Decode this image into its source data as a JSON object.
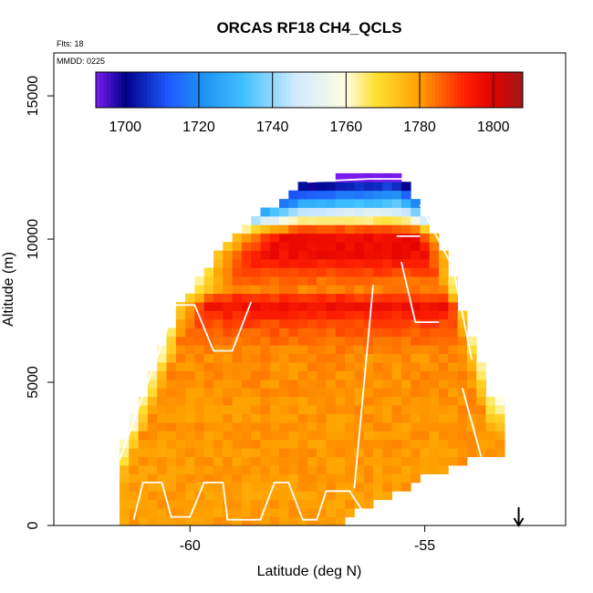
{
  "chart_data": {
    "type": "heatmap",
    "title": "ORCAS RF18 CH4_QCLS",
    "annotations": [
      "Flts: 18",
      "MMDD: 0225"
    ],
    "xlabel": "Latitude (deg N)",
    "ylabel": "Altitude (m)",
    "xlim": [
      -62.9,
      -52.0
    ],
    "ylim": [
      0,
      16500
    ],
    "x_ticks": [
      -60,
      -55
    ],
    "y_ticks": [
      0,
      5000,
      10000,
      15000
    ],
    "x_tick_labels": [
      "-60",
      "-55"
    ],
    "y_tick_labels": [
      "0",
      "5000",
      "10000",
      "15000"
    ],
    "arrow_at_latitude": -53.0,
    "colorbar": {
      "range": [
        1692,
        1808
      ],
      "ticks": [
        1700,
        1720,
        1740,
        1760,
        1780,
        1800
      ],
      "tick_labels": [
        "1700",
        "1720",
        "1740",
        "1760",
        "1780",
        "1800"
      ],
      "stops": [
        {
          "value": 1692,
          "color": "#7a1cf0"
        },
        {
          "value": 1700,
          "color": "#00008b"
        },
        {
          "value": 1712,
          "color": "#1e5cff"
        },
        {
          "value": 1722,
          "color": "#2196f3"
        },
        {
          "value": 1732,
          "color": "#3fc0ff"
        },
        {
          "value": 1746,
          "color": "#cfeaff"
        },
        {
          "value": 1760,
          "color": "#fffde0"
        },
        {
          "value": 1768,
          "color": "#ffe033"
        },
        {
          "value": 1780,
          "color": "#ffa000"
        },
        {
          "value": 1792,
          "color": "#ff2200"
        },
        {
          "value": 1800,
          "color": "#e00000"
        },
        {
          "value": 1808,
          "color": "#a01818"
        }
      ]
    },
    "field": {
      "description_free": false,
      "lat_min": -61.5,
      "lat_max": -53.3,
      "lower_lat_start": -61.5,
      "lower_lat_end": -53.6,
      "top_altitude_curve": [
        {
          "lat": -61.5,
          "alt": 2400
        },
        {
          "lat": -60.8,
          "alt": 5200
        },
        {
          "lat": -60.2,
          "alt": 7600
        },
        {
          "lat": -59.4,
          "alt": 9300
        },
        {
          "lat": -58.5,
          "alt": 10700
        },
        {
          "lat": -57.6,
          "alt": 11800
        },
        {
          "lat": -56.6,
          "alt": 12100
        },
        {
          "lat": -55.6,
          "alt": 12300
        },
        {
          "lat": -55.3,
          "alt": 11700
        },
        {
          "lat": -54.6,
          "alt": 9400
        },
        {
          "lat": -54.1,
          "alt": 7000
        },
        {
          "lat": -53.6,
          "alt": 4500
        },
        {
          "lat": -53.3,
          "alt": 4200
        }
      ],
      "bottom_altitude_curve": [
        {
          "lat": -61.5,
          "alt": 250
        },
        {
          "lat": -59.0,
          "alt": 0
        },
        {
          "lat": -57.0,
          "alt": 0
        },
        {
          "lat": -56.2,
          "alt": 800
        },
        {
          "lat": -55.0,
          "alt": 1800
        },
        {
          "lat": -54.0,
          "alt": 2500
        },
        {
          "lat": -53.6,
          "alt": 2600
        }
      ],
      "layers": [
        {
          "alt": 12300,
          "value": 1705
        },
        {
          "alt": 11800,
          "value": 1722
        },
        {
          "alt": 11200,
          "value": 1738
        },
        {
          "alt": 10700,
          "value": 1762
        },
        {
          "alt": 10200,
          "value": 1797
        },
        {
          "alt": 9500,
          "value": 1797
        },
        {
          "alt": 8900,
          "value": 1790
        },
        {
          "alt": 8300,
          "value": 1782
        },
        {
          "alt": 7700,
          "value": 1796
        },
        {
          "alt": 7000,
          "value": 1788
        },
        {
          "alt": 6000,
          "value": 1782
        },
        {
          "alt": 4000,
          "value": 1781
        },
        {
          "alt": 1000,
          "value": 1780
        }
      ]
    },
    "flight_track": [
      [
        [
          -61.2,
          200
        ],
        [
          -61.0,
          1500
        ],
        [
          -60.6,
          1500
        ],
        [
          -60.4,
          300
        ],
        [
          -60.0,
          300
        ],
        [
          -59.7,
          1500
        ],
        [
          -59.3,
          1500
        ],
        [
          -59.2,
          200
        ],
        [
          -58.5,
          200
        ],
        [
          -58.2,
          1500
        ],
        [
          -57.9,
          1500
        ],
        [
          -57.6,
          200
        ],
        [
          -57.3,
          200
        ],
        [
          -57.1,
          1200
        ],
        [
          -56.6,
          1200
        ],
        [
          -56.2,
          200
        ]
      ],
      [
        [
          -61.5,
          2300
        ],
        [
          -60.3,
          7700
        ],
        [
          -59.9,
          7700
        ],
        [
          -59.5,
          6100
        ],
        [
          -59.1,
          6100
        ],
        [
          -58.7,
          7800
        ]
      ],
      [
        [
          -56.5,
          1300
        ],
        [
          -56.1,
          8400
        ]
      ],
      [
        [
          -57.5,
          12000
        ],
        [
          -56.2,
          12100
        ],
        [
          -55.2,
          12100
        ]
      ],
      [
        [
          -55.6,
          10100
        ],
        [
          -55.1,
          10100
        ]
      ],
      [
        [
          -55.5,
          9200
        ],
        [
          -55.2,
          7100
        ],
        [
          -54.7,
          7100
        ]
      ],
      [
        [
          -55.1,
          11200
        ],
        [
          -54.4,
          9000
        ],
        [
          -54.0,
          5800
        ]
      ],
      [
        [
          -54.2,
          4800
        ],
        [
          -53.8,
          2400
        ]
      ]
    ]
  }
}
